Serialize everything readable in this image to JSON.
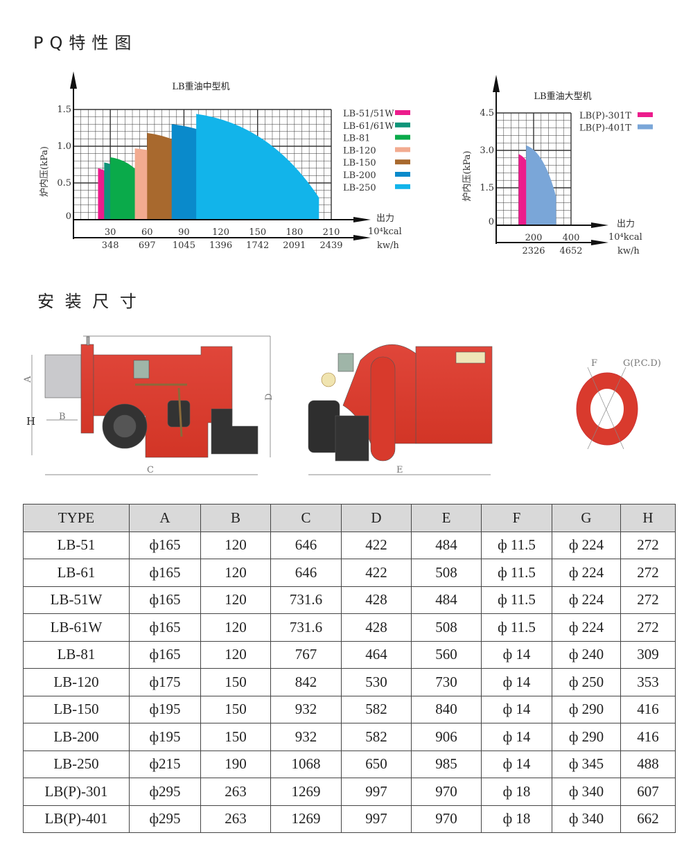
{
  "sections": {
    "pq_title": "PQ特性图",
    "install_title": "安 装 尺 寸"
  },
  "chart_data": [
    {
      "type": "area",
      "title": "LB重油中型机",
      "ylabel": "炉内压(kPa)",
      "xlabel": "出力",
      "x_unit_1": "10⁴kcal",
      "x_unit_2": "kw/h",
      "xlim": [
        0,
        210
      ],
      "ylim": [
        0,
        1.5
      ],
      "x_ticks": [
        30,
        60,
        90,
        120,
        150,
        180,
        210
      ],
      "x_ticks_kw": [
        "348",
        "697",
        "1045",
        "1396",
        "1742",
        "2091",
        "2439"
      ],
      "y_ticks": [
        "0",
        "0.5",
        "1.0",
        "1.5"
      ],
      "grid": true,
      "legend": "right",
      "series": [
        {
          "name": "LB-51/51W",
          "color": "#ec1c8c",
          "x": [
            20,
            40
          ],
          "p_start": 0.7,
          "p_end": 0.35
        },
        {
          "name": "LB-61/61W",
          "color": "#0f9479",
          "x": [
            25,
            50
          ],
          "p_start": 0.78,
          "p_end": 0.42
        },
        {
          "name": "LB-81",
          "color": "#0aaa4a",
          "x": [
            30,
            60
          ],
          "p_start": 0.85,
          "p_end": 0.5
        },
        {
          "name": "LB-120",
          "color": "#f2ab90",
          "x": [
            50,
            100
          ],
          "p_start": 0.97,
          "p_end": 0.62
        },
        {
          "name": "LB-150",
          "color": "#a8692e",
          "x": [
            60,
            120
          ],
          "p_start": 1.18,
          "p_end": 0.57
        },
        {
          "name": "LB-200",
          "color": "#0a8acb",
          "x": [
            80,
            160
          ],
          "p_start": 1.3,
          "p_end": 0.57
        },
        {
          "name": "LB-250",
          "color": "#12b4ea",
          "x": [
            100,
            200
          ],
          "p_start": 1.44,
          "p_end": 0.3
        }
      ]
    },
    {
      "type": "area",
      "title": "LB重油大型机",
      "ylabel": "炉内压(kPa)",
      "xlabel": "出力",
      "x_unit_1": "10⁴kcal",
      "x_unit_2": "kw/h",
      "xlim": [
        0,
        400
      ],
      "ylim": [
        0,
        4.5
      ],
      "x_ticks": [
        200,
        400
      ],
      "x_ticks_kw": [
        "2326",
        "4652"
      ],
      "y_ticks": [
        "0",
        "1.5",
        "3.0",
        "4.5"
      ],
      "grid": true,
      "legend": "right",
      "series": [
        {
          "name": "LB(P)-301T",
          "color": "#ec1c8c",
          "x": [
            120,
            240
          ],
          "p_start": 2.85,
          "p_end": 1.0
        },
        {
          "name": "LB(P)-401T",
          "color": "#7aa6d8",
          "x": [
            160,
            320
          ],
          "p_start": 3.2,
          "p_end": 1.15
        }
      ]
    }
  ],
  "drawing_labels": {
    "A": "A",
    "B": "B",
    "C": "C",
    "D": "D",
    "E": "E",
    "F": "F",
    "G": "G(P.C.D)",
    "H": "H"
  },
  "table": {
    "headers": [
      "TYPE",
      "A",
      "B",
      "C",
      "D",
      "E",
      "F",
      "G",
      "H"
    ],
    "rows": [
      [
        "LB-51",
        "ф165",
        "120",
        "646",
        "422",
        "484",
        "ф 11.5",
        "ф 224",
        "272"
      ],
      [
        "LB-61",
        "ф165",
        "120",
        "646",
        "422",
        "508",
        "ф 11.5",
        "ф 224",
        "272"
      ],
      [
        "LB-51W",
        "ф165",
        "120",
        "731.6",
        "428",
        "484",
        "ф 11.5",
        "ф 224",
        "272"
      ],
      [
        "LB-61W",
        "ф165",
        "120",
        "731.6",
        "428",
        "508",
        "ф 11.5",
        "ф 224",
        "272"
      ],
      [
        "LB-81",
        "ф165",
        "120",
        "767",
        "464",
        "560",
        "ф 14",
        "ф 240",
        "309"
      ],
      [
        "LB-120",
        "ф175",
        "150",
        "842",
        "530",
        "730",
        "ф 14",
        "ф 250",
        "353"
      ],
      [
        "LB-150",
        "ф195",
        "150",
        "932",
        "582",
        "840",
        "ф 14",
        "ф 290",
        "416"
      ],
      [
        "LB-200",
        "ф195",
        "150",
        "932",
        "582",
        "906",
        "ф 14",
        "ф 290",
        "416"
      ],
      [
        "LB-250",
        "ф215",
        "190",
        "1068",
        "650",
        "985",
        "ф 14",
        "ф 345",
        "488"
      ],
      [
        "LB(P)-301",
        "ф295",
        "263",
        "1269",
        "997",
        "970",
        "ф 18",
        "ф 340",
        "607"
      ],
      [
        "LB(P)-401",
        "ф295",
        "263",
        "1269",
        "997",
        "970",
        "ф 18",
        "ф 340",
        "662"
      ]
    ]
  }
}
